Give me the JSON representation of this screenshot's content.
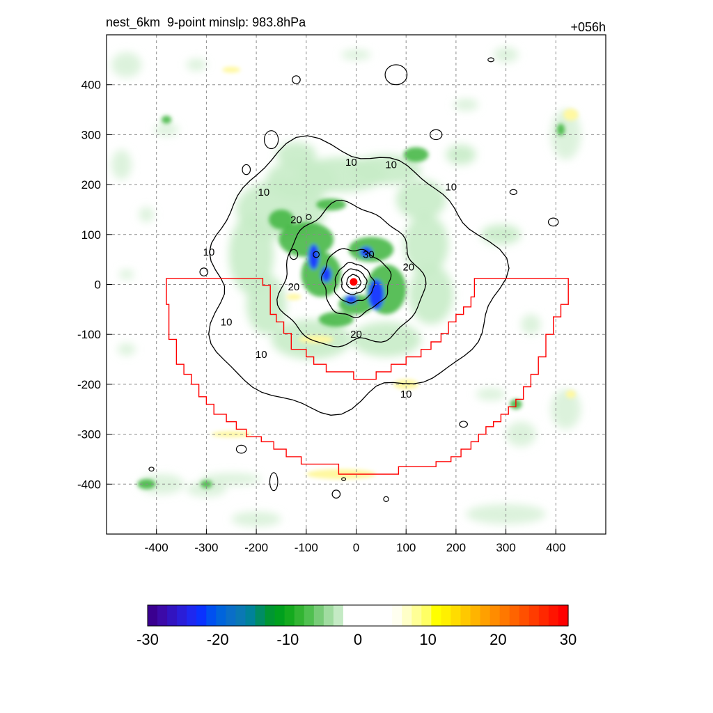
{
  "chart_data": {
    "type": "heatmap",
    "title_left": "nest_6km  9-point minslp: 983.8hPa",
    "title_right": "+056h",
    "xlim": [
      -500,
      500
    ],
    "ylim": [
      -500,
      500
    ],
    "x_ticks": [
      -400,
      -300,
      -200,
      -100,
      0,
      100,
      200,
      300,
      400
    ],
    "y_ticks": [
      400,
      300,
      200,
      100,
      0,
      -100,
      -200,
      -300,
      -400
    ],
    "grid": true,
    "center": {
      "x": -5,
      "y": 5
    },
    "contour_levels": [
      10,
      20,
      30
    ],
    "contour_label_positions": [
      {
        "text": "10",
        "x": -185,
        "y": 185
      },
      {
        "text": "10",
        "x": -10,
        "y": 245
      },
      {
        "text": "10",
        "x": 70,
        "y": 240
      },
      {
        "text": "10",
        "x": 190,
        "y": 195
      },
      {
        "text": "10",
        "x": -295,
        "y": 65
      },
      {
        "text": "10",
        "x": -260,
        "y": -75
      },
      {
        "text": "10",
        "x": -190,
        "y": -140
      },
      {
        "text": "10",
        "x": 100,
        "y": -220
      },
      {
        "text": "20",
        "x": -120,
        "y": 130
      },
      {
        "text": "20",
        "x": -125,
        "y": -5
      },
      {
        "text": "20",
        "x": 105,
        "y": 35
      },
      {
        "text": "20",
        "x": 0,
        "y": -100
      },
      {
        "text": "30",
        "x": 25,
        "y": 60
      }
    ],
    "red_polygon_vertices": [
      [
        -375,
        12
      ],
      [
        -187,
        12
      ],
      [
        -187,
        -2
      ],
      [
        -172,
        -2
      ],
      [
        -172,
        -60
      ],
      [
        -160,
        -60
      ],
      [
        -160,
        -75
      ],
      [
        -145,
        -75
      ],
      [
        -145,
        -98
      ],
      [
        -130,
        -98
      ],
      [
        -130,
        -130
      ],
      [
        -100,
        -130
      ],
      [
        -100,
        -145
      ],
      [
        -85,
        -145
      ],
      [
        -85,
        -160
      ],
      [
        -60,
        -160
      ],
      [
        -60,
        -175
      ],
      [
        -5,
        -175
      ],
      [
        -5,
        -190
      ],
      [
        40,
        -190
      ],
      [
        40,
        -175
      ],
      [
        70,
        -175
      ],
      [
        70,
        -160
      ],
      [
        100,
        -160
      ],
      [
        100,
        -145
      ],
      [
        130,
        -145
      ],
      [
        130,
        -130
      ],
      [
        150,
        -130
      ],
      [
        150,
        -115
      ],
      [
        170,
        -115
      ],
      [
        170,
        -98
      ],
      [
        185,
        -98
      ],
      [
        185,
        -75
      ],
      [
        200,
        -75
      ],
      [
        200,
        -60
      ],
      [
        215,
        -60
      ],
      [
        215,
        -45
      ],
      [
        230,
        -45
      ],
      [
        230,
        -25
      ],
      [
        237,
        -25
      ],
      [
        237,
        12
      ],
      [
        425,
        12
      ],
      [
        425,
        -40
      ],
      [
        410,
        -40
      ],
      [
        410,
        -65
      ],
      [
        395,
        -65
      ],
      [
        395,
        -100
      ],
      [
        380,
        -100
      ],
      [
        380,
        -145
      ],
      [
        365,
        -145
      ],
      [
        365,
        -180
      ],
      [
        350,
        -180
      ],
      [
        350,
        -205
      ],
      [
        335,
        -205
      ],
      [
        335,
        -230
      ],
      [
        320,
        -230
      ],
      [
        320,
        -245
      ],
      [
        305,
        -245
      ],
      [
        305,
        -260
      ],
      [
        290,
        -260
      ],
      [
        290,
        -275
      ],
      [
        275,
        -275
      ],
      [
        275,
        -285
      ],
      [
        260,
        -285
      ],
      [
        260,
        -300
      ],
      [
        245,
        -300
      ],
      [
        245,
        -315
      ],
      [
        230,
        -315
      ],
      [
        230,
        -330
      ],
      [
        210,
        -330
      ],
      [
        210,
        -345
      ],
      [
        190,
        -345
      ],
      [
        190,
        -355
      ],
      [
        160,
        -355
      ],
      [
        160,
        -365
      ],
      [
        85,
        -365
      ],
      [
        85,
        -380
      ],
      [
        -35,
        -380
      ],
      [
        -35,
        -360
      ],
      [
        -110,
        -360
      ],
      [
        -110,
        -345
      ],
      [
        -140,
        -345
      ],
      [
        -140,
        -330
      ],
      [
        -165,
        -330
      ],
      [
        -165,
        -315
      ],
      [
        -190,
        -315
      ],
      [
        -190,
        -305
      ],
      [
        -220,
        -305
      ],
      [
        -220,
        -290
      ],
      [
        -240,
        -290
      ],
      [
        -240,
        -275
      ],
      [
        -260,
        -275
      ],
      [
        -260,
        -260
      ],
      [
        -285,
        -260
      ],
      [
        -285,
        -240
      ],
      [
        -300,
        -240
      ],
      [
        -300,
        -225
      ],
      [
        -315,
        -225
      ],
      [
        -315,
        -200
      ],
      [
        -330,
        -200
      ],
      [
        -330,
        -180
      ],
      [
        -345,
        -180
      ],
      [
        -345,
        -160
      ],
      [
        -360,
        -160
      ],
      [
        -360,
        -110
      ],
      [
        -375,
        -110
      ],
      [
        -375,
        -40
      ],
      [
        -380,
        -40
      ],
      [
        -380,
        12
      ],
      [
        -375,
        12
      ]
    ],
    "colorbar": {
      "min": -30,
      "max": 30,
      "tick_labels": [
        "-30",
        "-20",
        "-10",
        "0",
        "10",
        "20",
        "30"
      ],
      "colors": [
        "#3a0090",
        "#3c0aa8",
        "#3214c0",
        "#2a1ed8",
        "#1e28f0",
        "#0a32ff",
        "#0050f0",
        "#0064dc",
        "#0a6ec8",
        "#0a78b4",
        "#00829a",
        "#008c64",
        "#009632",
        "#00a01e",
        "#14aa1e",
        "#32b432",
        "#50c050",
        "#78cc78",
        "#a0dca0",
        "#c4eac4",
        "#ffffff",
        "#ffffff",
        "#ffffff",
        "#ffffff",
        "#ffffff",
        "#fffff0",
        "#ffffc8",
        "#ffff96",
        "#ffff64",
        "#ffff00",
        "#fff000",
        "#ffdc00",
        "#ffc800",
        "#ffb400",
        "#ffa000",
        "#ff8c00",
        "#ff7800",
        "#ff6400",
        "#ff5000",
        "#ff3c00",
        "#ff2800",
        "#ff1400",
        "#ff0000"
      ]
    }
  }
}
